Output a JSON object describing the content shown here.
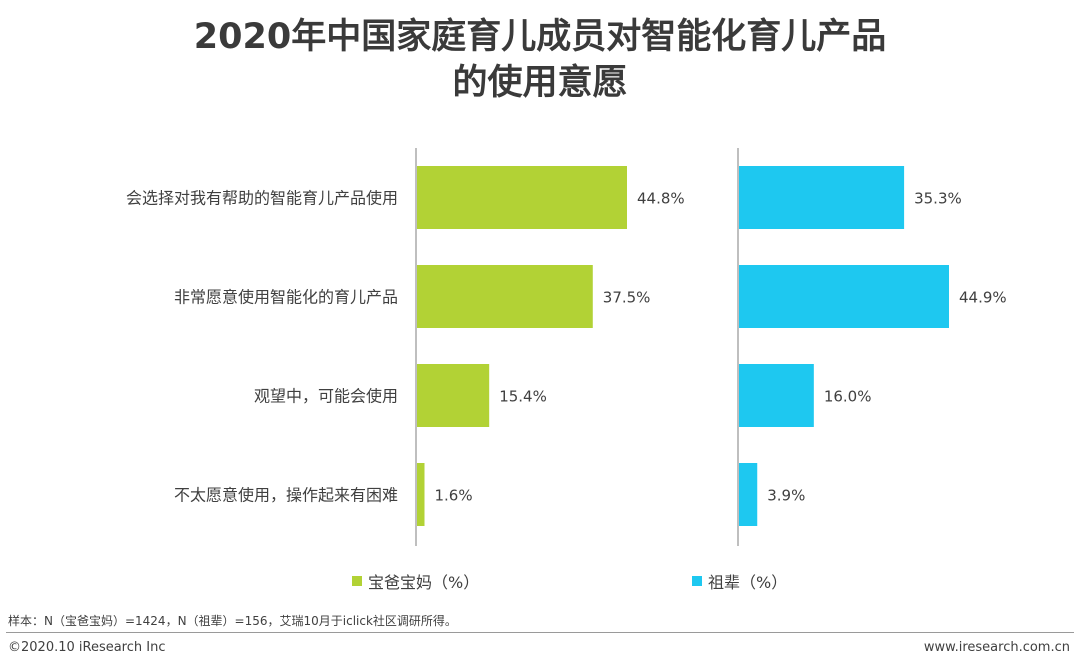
{
  "title": {
    "line1": "2020年中国家庭育儿成员对智能化育儿产品",
    "line2": "的使用意愿"
  },
  "chart_data": {
    "type": "bar",
    "orientation": "horizontal",
    "title": "2020年中国家庭育儿成员对智能化育儿产品的使用意愿",
    "categories": [
      "会选择对我有帮助的智能育儿产品使用",
      "非常愿意使用智能化的育儿产品",
      "观望中，可能会使用",
      "不太愿意使用，操作起来有困难"
    ],
    "series": [
      {
        "name": "宝爸宝妈（%）",
        "color": "#b2d235",
        "values": [
          44.8,
          37.5,
          15.4,
          1.6
        ],
        "labels": [
          "44.8%",
          "37.5%",
          "15.4%",
          "1.6%"
        ]
      },
      {
        "name": "祖辈（%）",
        "color": "#1ec8f0",
        "values": [
          35.3,
          44.9,
          16.0,
          3.9
        ],
        "labels": [
          "35.3%",
          "44.9%",
          "16.0%",
          "3.9%"
        ]
      }
    ],
    "xlim": [
      0,
      45
    ],
    "xlabel": "",
    "ylabel": "",
    "grid": false,
    "legend_position": "bottom"
  },
  "legend": {
    "parents_label": "宝爸宝妈（%）",
    "grandparents_label": "祖辈（%）",
    "parents_color": "#b2d235",
    "grandparents_color": "#1ec8f0"
  },
  "footer": {
    "note": "样本：N（宝爸宝妈）=1424，N（祖辈）=156，艾瑞10月于iclick社区调研所得。",
    "copyright": "©2020.10 iResearch Inc",
    "website": "www.iresearch.com.cn"
  }
}
